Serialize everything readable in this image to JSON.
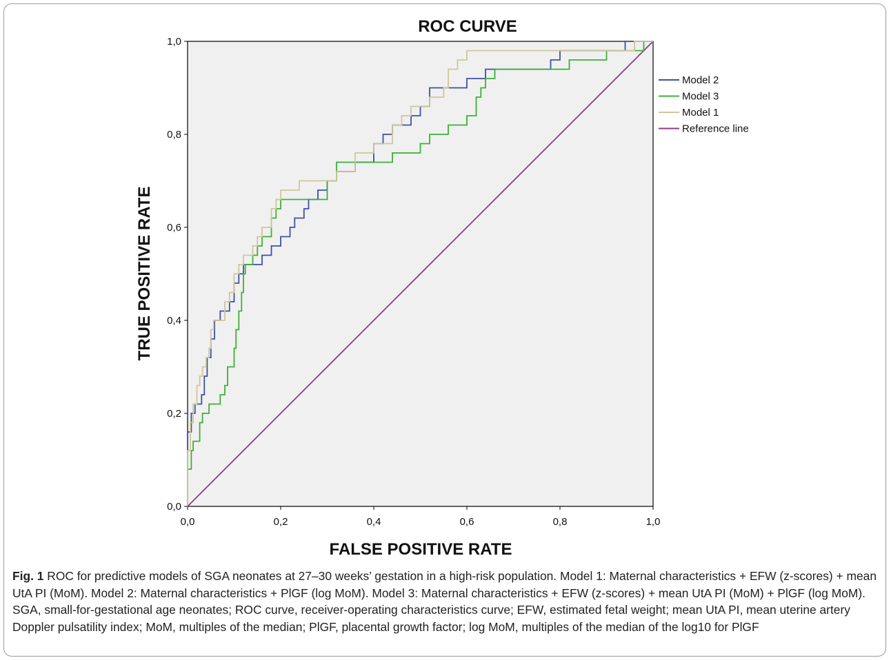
{
  "chart_data": {
    "type": "line",
    "title": "ROC CURVE",
    "xlabel": "FALSE POSITIVE RATE",
    "ylabel": "TRUE POSITIVE RATE",
    "xlim": [
      0,
      1
    ],
    "ylim": [
      0,
      1
    ],
    "xticks": [
      "0,0",
      "0,2",
      "0,4",
      "0,6",
      "0,8",
      "1,0"
    ],
    "yticks": [
      "0,0",
      "0,2",
      "0,4",
      "0,6",
      "0,8",
      "1,0"
    ],
    "grid": false,
    "background": "#f0f0f0",
    "legend_position": "right",
    "series": [
      {
        "name": "Model 2",
        "color": "#3d4fa8",
        "points": [
          [
            0,
            0
          ],
          [
            0,
            0.16
          ],
          [
            0.008,
            0.16
          ],
          [
            0.008,
            0.2
          ],
          [
            0.016,
            0.2
          ],
          [
            0.016,
            0.22
          ],
          [
            0.03,
            0.22
          ],
          [
            0.03,
            0.24
          ],
          [
            0.036,
            0.24
          ],
          [
            0.036,
            0.28
          ],
          [
            0.042,
            0.28
          ],
          [
            0.042,
            0.32
          ],
          [
            0.05,
            0.32
          ],
          [
            0.05,
            0.36
          ],
          [
            0.058,
            0.36
          ],
          [
            0.058,
            0.4
          ],
          [
            0.07,
            0.4
          ],
          [
            0.07,
            0.42
          ],
          [
            0.09,
            0.42
          ],
          [
            0.09,
            0.44
          ],
          [
            0.1,
            0.44
          ],
          [
            0.1,
            0.48
          ],
          [
            0.11,
            0.48
          ],
          [
            0.11,
            0.5
          ],
          [
            0.12,
            0.5
          ],
          [
            0.12,
            0.52
          ],
          [
            0.16,
            0.52
          ],
          [
            0.16,
            0.54
          ],
          [
            0.18,
            0.54
          ],
          [
            0.18,
            0.56
          ],
          [
            0.2,
            0.56
          ],
          [
            0.2,
            0.58
          ],
          [
            0.22,
            0.58
          ],
          [
            0.22,
            0.6
          ],
          [
            0.23,
            0.6
          ],
          [
            0.23,
            0.62
          ],
          [
            0.25,
            0.62
          ],
          [
            0.25,
            0.64
          ],
          [
            0.26,
            0.64
          ],
          [
            0.26,
            0.66
          ],
          [
            0.28,
            0.66
          ],
          [
            0.28,
            0.68
          ],
          [
            0.3,
            0.68
          ],
          [
            0.3,
            0.7
          ],
          [
            0.32,
            0.7
          ],
          [
            0.32,
            0.72
          ],
          [
            0.36,
            0.72
          ],
          [
            0.36,
            0.74
          ],
          [
            0.4,
            0.74
          ],
          [
            0.4,
            0.78
          ],
          [
            0.42,
            0.78
          ],
          [
            0.42,
            0.8
          ],
          [
            0.44,
            0.8
          ],
          [
            0.44,
            0.82
          ],
          [
            0.48,
            0.82
          ],
          [
            0.48,
            0.84
          ],
          [
            0.5,
            0.84
          ],
          [
            0.5,
            0.86
          ],
          [
            0.52,
            0.86
          ],
          [
            0.52,
            0.9
          ],
          [
            0.6,
            0.9
          ],
          [
            0.6,
            0.92
          ],
          [
            0.64,
            0.92
          ],
          [
            0.64,
            0.94
          ],
          [
            0.78,
            0.94
          ],
          [
            0.78,
            0.96
          ],
          [
            0.8,
            0.96
          ],
          [
            0.8,
            0.98
          ],
          [
            0.94,
            0.98
          ],
          [
            0.94,
            1
          ],
          [
            1,
            1
          ]
        ]
      },
      {
        "name": "Model 3",
        "color": "#3cb034",
        "points": [
          [
            0,
            0
          ],
          [
            0,
            0.08
          ],
          [
            0.008,
            0.08
          ],
          [
            0.008,
            0.12
          ],
          [
            0.012,
            0.12
          ],
          [
            0.012,
            0.14
          ],
          [
            0.026,
            0.14
          ],
          [
            0.026,
            0.18
          ],
          [
            0.032,
            0.18
          ],
          [
            0.032,
            0.2
          ],
          [
            0.046,
            0.2
          ],
          [
            0.046,
            0.22
          ],
          [
            0.07,
            0.22
          ],
          [
            0.07,
            0.24
          ],
          [
            0.08,
            0.24
          ],
          [
            0.08,
            0.26
          ],
          [
            0.086,
            0.26
          ],
          [
            0.086,
            0.3
          ],
          [
            0.1,
            0.3
          ],
          [
            0.1,
            0.34
          ],
          [
            0.104,
            0.34
          ],
          [
            0.104,
            0.38
          ],
          [
            0.11,
            0.38
          ],
          [
            0.11,
            0.42
          ],
          [
            0.116,
            0.42
          ],
          [
            0.116,
            0.46
          ],
          [
            0.12,
            0.46
          ],
          [
            0.12,
            0.5
          ],
          [
            0.124,
            0.5
          ],
          [
            0.124,
            0.52
          ],
          [
            0.14,
            0.52
          ],
          [
            0.14,
            0.54
          ],
          [
            0.15,
            0.54
          ],
          [
            0.15,
            0.56
          ],
          [
            0.16,
            0.56
          ],
          [
            0.16,
            0.58
          ],
          [
            0.18,
            0.58
          ],
          [
            0.18,
            0.62
          ],
          [
            0.19,
            0.62
          ],
          [
            0.19,
            0.64
          ],
          [
            0.2,
            0.64
          ],
          [
            0.2,
            0.66
          ],
          [
            0.3,
            0.66
          ],
          [
            0.3,
            0.7
          ],
          [
            0.32,
            0.7
          ],
          [
            0.32,
            0.74
          ],
          [
            0.44,
            0.74
          ],
          [
            0.44,
            0.76
          ],
          [
            0.5,
            0.76
          ],
          [
            0.5,
            0.78
          ],
          [
            0.52,
            0.78
          ],
          [
            0.52,
            0.8
          ],
          [
            0.56,
            0.8
          ],
          [
            0.56,
            0.82
          ],
          [
            0.6,
            0.82
          ],
          [
            0.6,
            0.84
          ],
          [
            0.62,
            0.84
          ],
          [
            0.62,
            0.88
          ],
          [
            0.63,
            0.88
          ],
          [
            0.63,
            0.9
          ],
          [
            0.64,
            0.9
          ],
          [
            0.64,
            0.92
          ],
          [
            0.66,
            0.92
          ],
          [
            0.66,
            0.94
          ],
          [
            0.82,
            0.94
          ],
          [
            0.82,
            0.96
          ],
          [
            0.9,
            0.96
          ],
          [
            0.9,
            0.98
          ],
          [
            0.98,
            0.98
          ],
          [
            0.98,
            1
          ],
          [
            1,
            1
          ]
        ]
      },
      {
        "name": "Model 1",
        "color": "#cdc79a",
        "points": [
          [
            0,
            0
          ],
          [
            0,
            0.12
          ],
          [
            0.006,
            0.12
          ],
          [
            0.006,
            0.18
          ],
          [
            0.012,
            0.18
          ],
          [
            0.012,
            0.22
          ],
          [
            0.02,
            0.22
          ],
          [
            0.02,
            0.26
          ],
          [
            0.026,
            0.26
          ],
          [
            0.026,
            0.28
          ],
          [
            0.032,
            0.28
          ],
          [
            0.032,
            0.3
          ],
          [
            0.04,
            0.3
          ],
          [
            0.04,
            0.32
          ],
          [
            0.046,
            0.32
          ],
          [
            0.046,
            0.34
          ],
          [
            0.05,
            0.34
          ],
          [
            0.05,
            0.38
          ],
          [
            0.056,
            0.38
          ],
          [
            0.056,
            0.4
          ],
          [
            0.08,
            0.4
          ],
          [
            0.08,
            0.44
          ],
          [
            0.09,
            0.44
          ],
          [
            0.09,
            0.46
          ],
          [
            0.1,
            0.46
          ],
          [
            0.1,
            0.5
          ],
          [
            0.11,
            0.5
          ],
          [
            0.11,
            0.52
          ],
          [
            0.12,
            0.52
          ],
          [
            0.12,
            0.54
          ],
          [
            0.14,
            0.54
          ],
          [
            0.14,
            0.56
          ],
          [
            0.15,
            0.56
          ],
          [
            0.15,
            0.58
          ],
          [
            0.16,
            0.58
          ],
          [
            0.16,
            0.6
          ],
          [
            0.18,
            0.6
          ],
          [
            0.18,
            0.64
          ],
          [
            0.19,
            0.64
          ],
          [
            0.19,
            0.66
          ],
          [
            0.2,
            0.66
          ],
          [
            0.2,
            0.68
          ],
          [
            0.24,
            0.68
          ],
          [
            0.24,
            0.7
          ],
          [
            0.32,
            0.7
          ],
          [
            0.32,
            0.72
          ],
          [
            0.36,
            0.72
          ],
          [
            0.36,
            0.76
          ],
          [
            0.4,
            0.76
          ],
          [
            0.4,
            0.78
          ],
          [
            0.44,
            0.78
          ],
          [
            0.44,
            0.82
          ],
          [
            0.46,
            0.82
          ],
          [
            0.46,
            0.84
          ],
          [
            0.48,
            0.84
          ],
          [
            0.48,
            0.86
          ],
          [
            0.52,
            0.86
          ],
          [
            0.52,
            0.88
          ],
          [
            0.55,
            0.88
          ],
          [
            0.55,
            0.9
          ],
          [
            0.56,
            0.9
          ],
          [
            0.56,
            0.94
          ],
          [
            0.58,
            0.94
          ],
          [
            0.58,
            0.96
          ],
          [
            0.6,
            0.96
          ],
          [
            0.6,
            0.98
          ],
          [
            0.96,
            0.98
          ],
          [
            0.96,
            1
          ],
          [
            1,
            1
          ]
        ]
      },
      {
        "name": "Reference line",
        "color": "#8b3a8b",
        "points": [
          [
            0,
            0
          ],
          [
            1,
            1
          ]
        ]
      }
    ]
  },
  "caption": {
    "label": "Fig. 1",
    "text": " ROC for predictive models of SGA neonates at 27–30 weeks’ gestation in a high-risk population. Model 1: Maternal characteristics + EFW (z-scores) + mean UtA PI (MoM). Model 2: Maternal characteristics + PlGF (log MoM). Model 3: Maternal characteristics + EFW (z-scores) + mean UtA PI (MoM) + PlGF (log MoM). SGA, small-for-gestational age neonates; ROC curve, receiver-operating characteristics curve; EFW, estimated fetal weight; mean UtA PI, mean uterine artery Doppler pulsatility index; MoM, multiples of the median; PlGF, placental growth factor; log MoM, multiples of the median of the log10 for PlGF"
  }
}
